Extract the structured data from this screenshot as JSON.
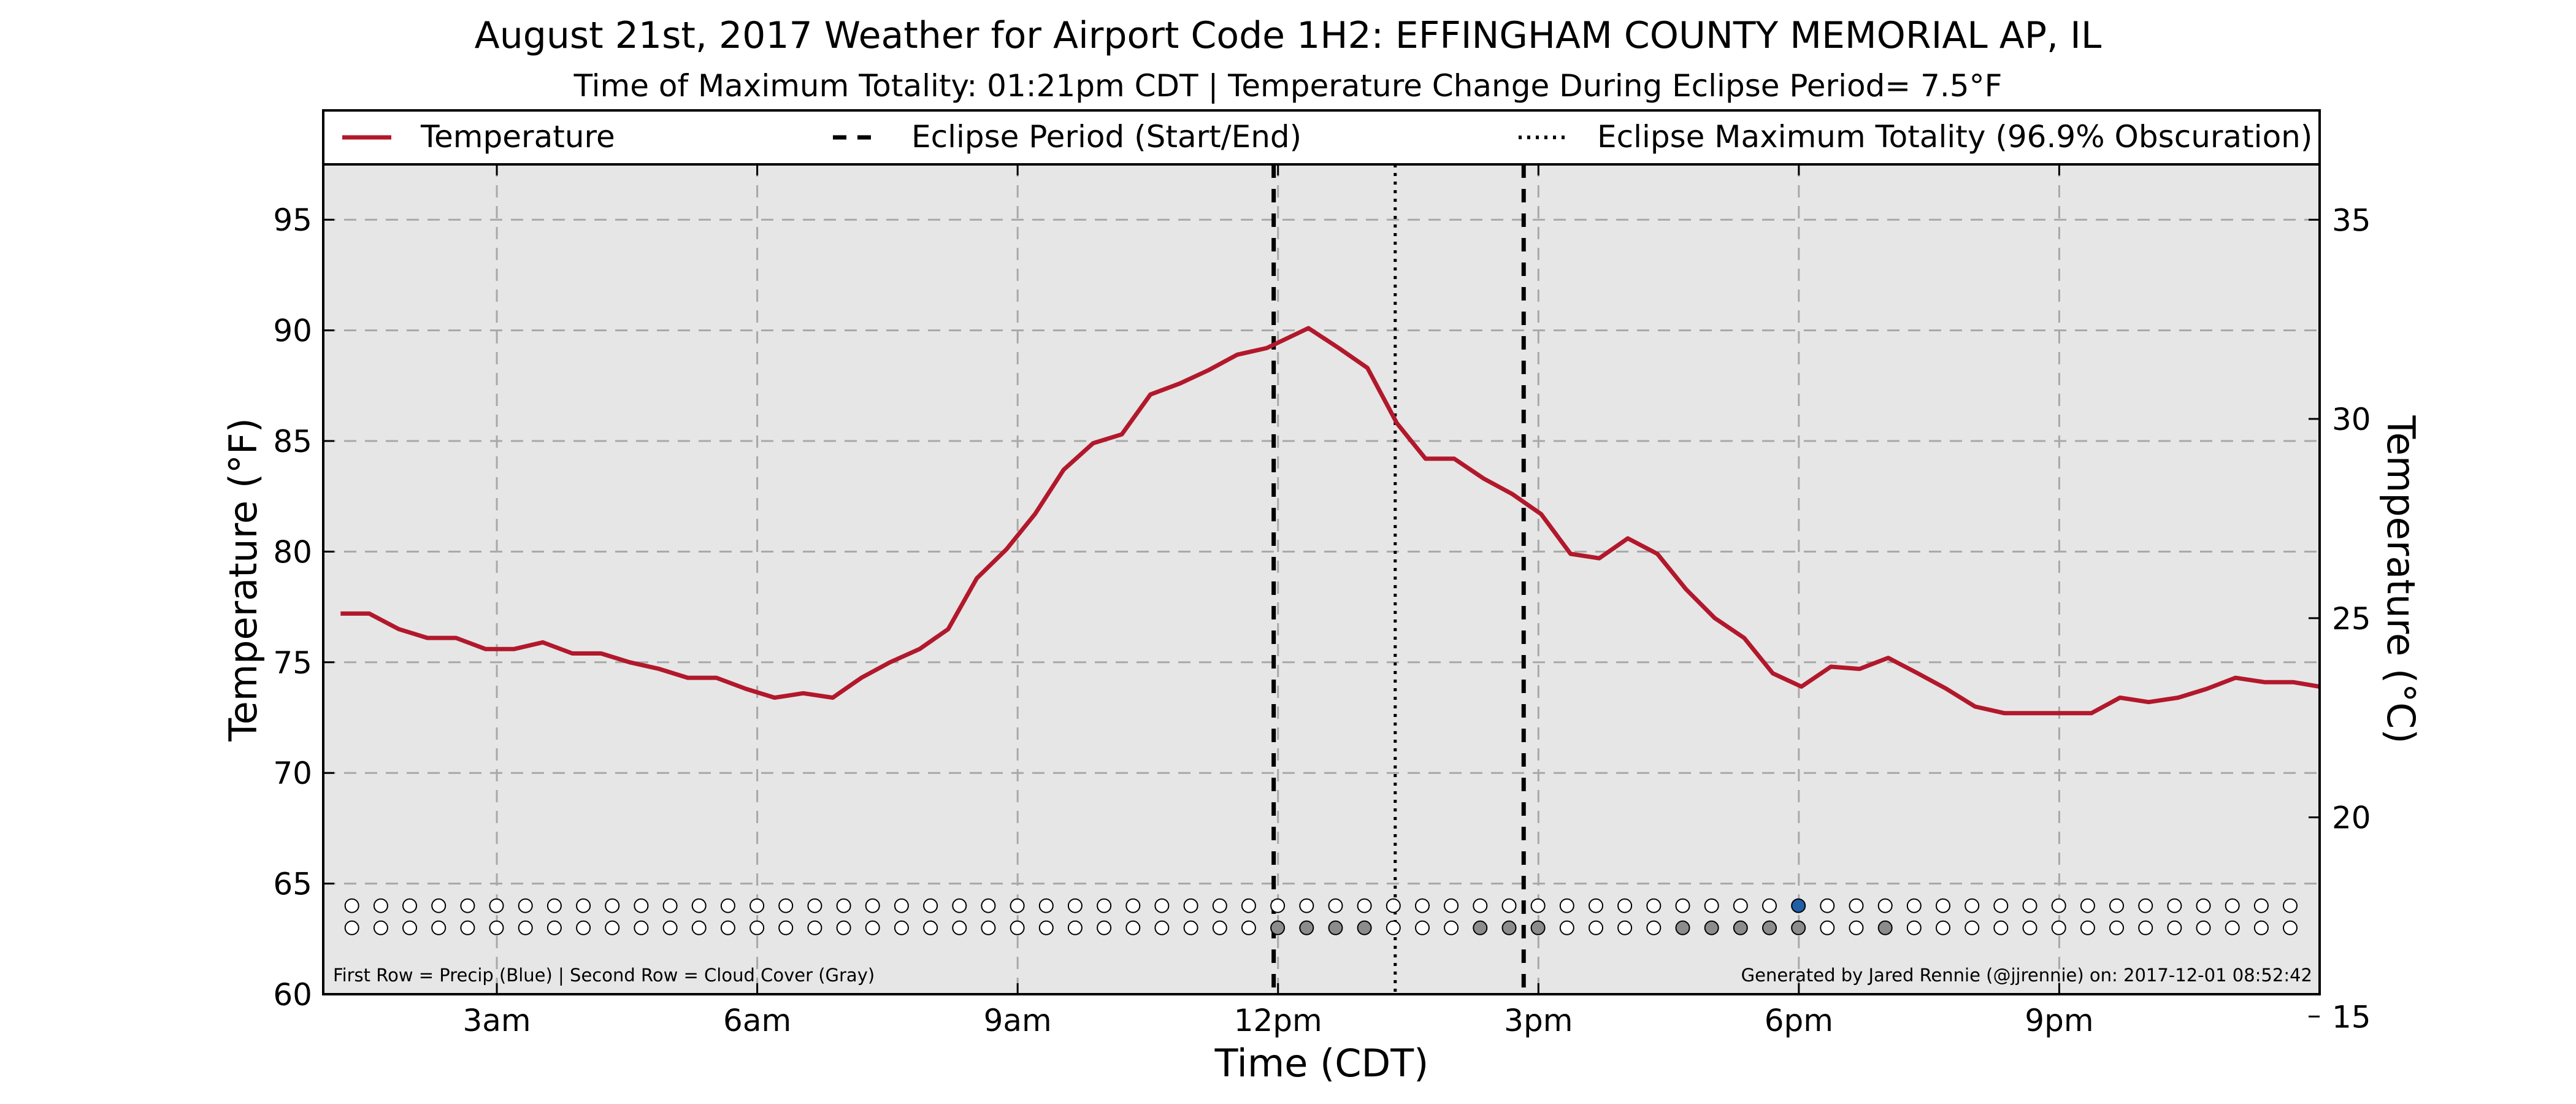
{
  "chart_data": {
    "type": "line",
    "title": "August 21st, 2017 Weather for Airport Code 1H2: EFFINGHAM COUNTY MEMORIAL AP, IL",
    "subtitle": "Time of Maximum Totality: 01:21pm CDT | Temperature Change During Eclipse Period= 7.5°F",
    "xlabel": "Time (CDT)",
    "ylabel": "Temperature (°F)",
    "ylabel_right": "Temperature (°C)",
    "x_unit": "hours",
    "xlim": [
      1.0,
      24.0
    ],
    "ylim": [
      60,
      97.5
    ],
    "ylim_right": [
      15.56,
      36.39
    ],
    "grid": true,
    "legend_position": "top",
    "x_ticks": [
      {
        "x": 3,
        "label": "3am"
      },
      {
        "x": 6,
        "label": "6am"
      },
      {
        "x": 9,
        "label": "9am"
      },
      {
        "x": 12,
        "label": "12pm"
      },
      {
        "x": 15,
        "label": "3pm"
      },
      {
        "x": 18,
        "label": "6pm"
      },
      {
        "x": 21,
        "label": "9pm"
      }
    ],
    "y_ticks": [
      60,
      65,
      70,
      75,
      80,
      85,
      90,
      95
    ],
    "y_ticks_right": [
      15,
      20,
      25,
      30,
      35
    ],
    "legend": [
      {
        "label": "Temperature",
        "style": "solid",
        "color": "#b2182b"
      },
      {
        "label": "Eclipse Period (Start/End)",
        "style": "dashed",
        "color": "#000000"
      },
      {
        "label": "Eclipse Maximum Totality (96.9% Obscuration)",
        "style": "dotted",
        "color": "#000000"
      }
    ],
    "eclipse_start": 11.95,
    "eclipse_max": 13.35,
    "eclipse_end": 14.83,
    "series": [
      {
        "name": "Temperature",
        "color": "#b2182b",
        "points": [
          [
            1.2,
            77.2
          ],
          [
            1.53,
            77.2
          ],
          [
            1.87,
            76.5
          ],
          [
            2.2,
            76.1
          ],
          [
            2.53,
            76.1
          ],
          [
            2.87,
            75.6
          ],
          [
            3.2,
            75.6
          ],
          [
            3.53,
            75.9
          ],
          [
            3.87,
            75.4
          ],
          [
            4.2,
            75.4
          ],
          [
            4.53,
            75.0
          ],
          [
            4.87,
            74.7
          ],
          [
            5.2,
            74.3
          ],
          [
            5.53,
            74.3
          ],
          [
            5.87,
            73.8
          ],
          [
            6.2,
            73.4
          ],
          [
            6.53,
            73.6
          ],
          [
            6.87,
            73.4
          ],
          [
            7.2,
            74.3
          ],
          [
            7.53,
            75.0
          ],
          [
            7.87,
            75.6
          ],
          [
            8.2,
            76.5
          ],
          [
            8.53,
            78.8
          ],
          [
            8.87,
            80.1
          ],
          [
            9.2,
            81.7
          ],
          [
            9.53,
            83.7
          ],
          [
            9.87,
            84.9
          ],
          [
            10.2,
            85.3
          ],
          [
            10.53,
            87.1
          ],
          [
            10.87,
            87.6
          ],
          [
            11.2,
            88.2
          ],
          [
            11.53,
            88.9
          ],
          [
            11.87,
            89.2
          ],
          [
            12.35,
            90.1
          ],
          [
            12.7,
            89.2
          ],
          [
            13.03,
            88.3
          ],
          [
            13.37,
            85.8
          ],
          [
            13.7,
            84.2
          ],
          [
            14.03,
            84.2
          ],
          [
            14.37,
            83.3
          ],
          [
            14.7,
            82.6
          ],
          [
            15.03,
            81.7
          ],
          [
            15.37,
            79.9
          ],
          [
            15.7,
            79.7
          ],
          [
            16.03,
            80.6
          ],
          [
            16.37,
            79.9
          ],
          [
            16.7,
            78.3
          ],
          [
            17.03,
            77.0
          ],
          [
            17.37,
            76.1
          ],
          [
            17.7,
            74.5
          ],
          [
            18.03,
            73.9
          ],
          [
            18.37,
            74.8
          ],
          [
            18.7,
            74.7
          ],
          [
            19.03,
            75.2
          ],
          [
            19.37,
            74.5
          ],
          [
            19.7,
            73.8
          ],
          [
            20.03,
            73.0
          ],
          [
            20.37,
            72.7
          ],
          [
            20.7,
            72.7
          ],
          [
            21.03,
            72.7
          ],
          [
            21.37,
            72.7
          ],
          [
            21.7,
            73.4
          ],
          [
            22.03,
            73.2
          ],
          [
            22.37,
            73.4
          ],
          [
            22.7,
            73.8
          ],
          [
            23.03,
            74.3
          ],
          [
            23.37,
            74.1
          ],
          [
            23.7,
            74.1
          ],
          [
            24.0,
            73.9
          ]
        ]
      }
    ],
    "markers": {
      "precip_row_y": 64.0,
      "cloud_row_y": 63.0,
      "start_x": 1.33,
      "step_x": 0.3333,
      "count": 68,
      "precip_blue_index": 50,
      "cloud_gray_indices": [
        32,
        33,
        34,
        35,
        39,
        40,
        41,
        46,
        47,
        48,
        49,
        50,
        53
      ],
      "colors": {
        "empty": "#ffffff",
        "blue": "#1f5fa8",
        "gray": "#8c8c8c"
      }
    },
    "note_left": "First Row = Precip (Blue) | Second Row = Cloud Cover (Gray)",
    "note_right": "Generated by Jared Rennie (@jjrennie) on: 2017-12-01 08:52:42"
  }
}
